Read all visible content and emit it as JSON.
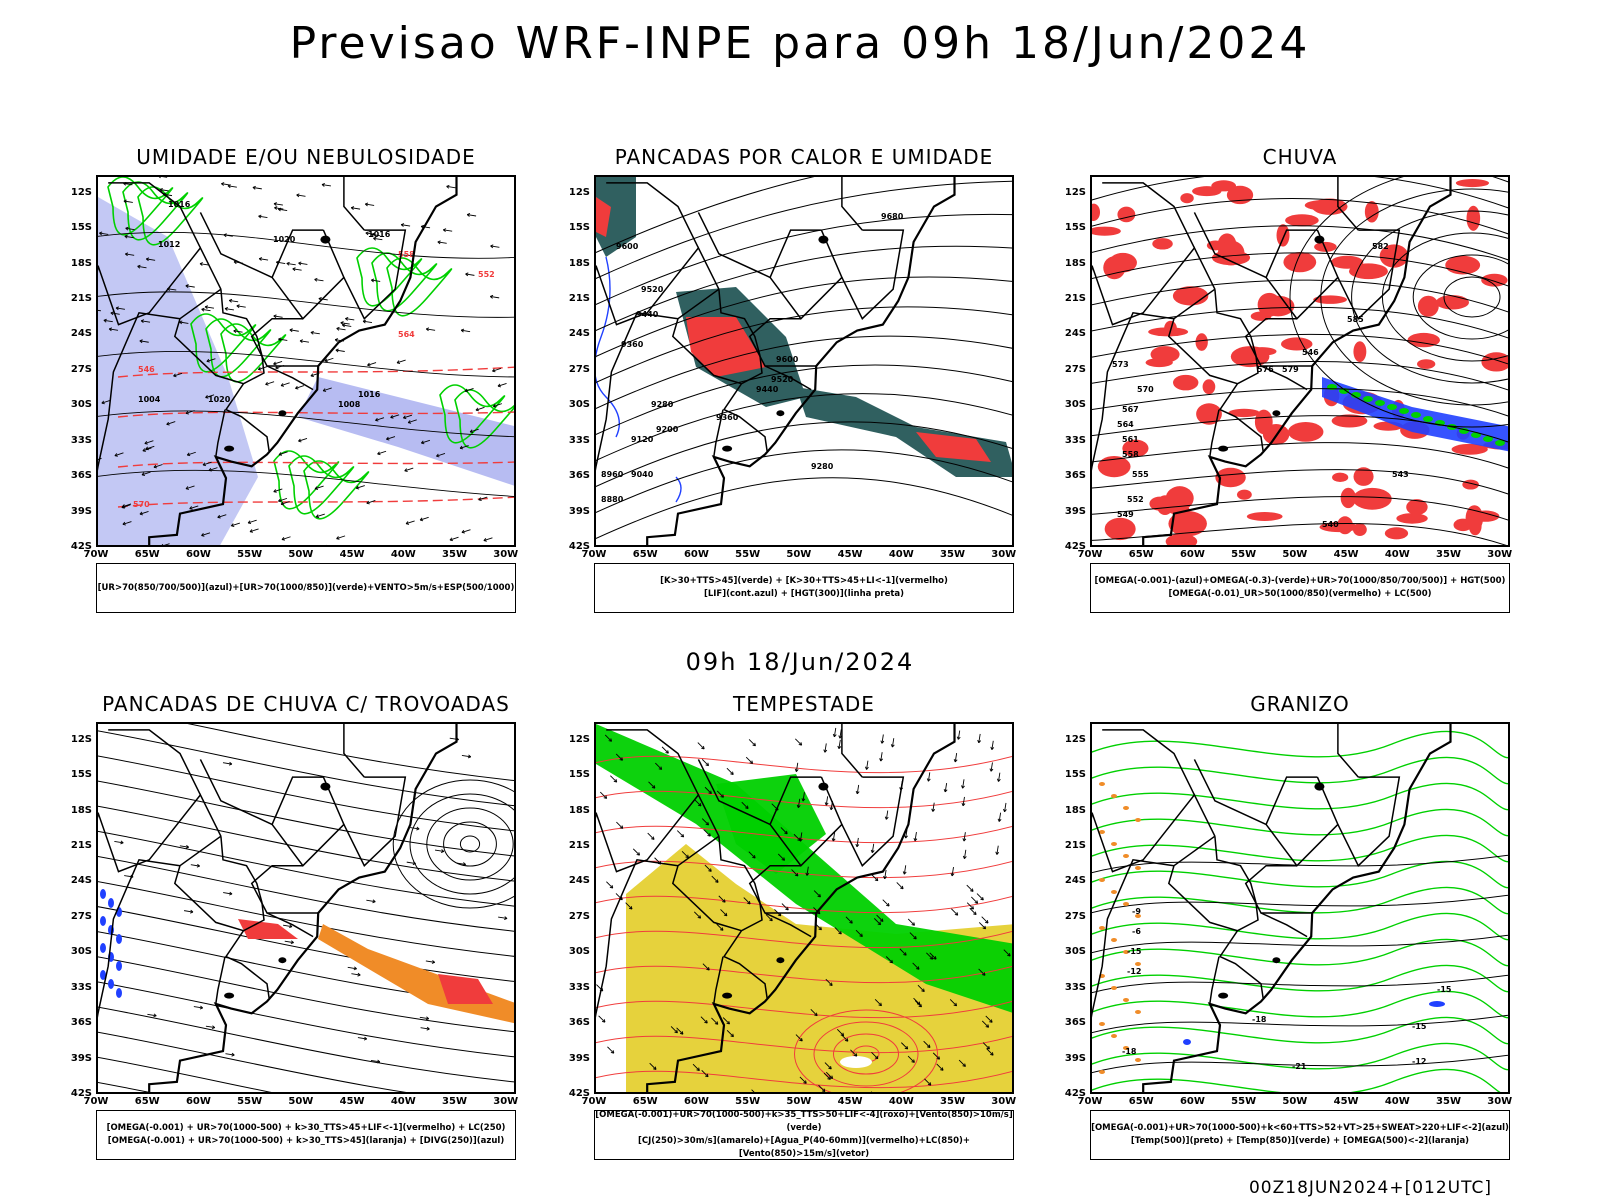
{
  "main_title": "Previsao WRF-INPE  para 09h 18/Jun/2024",
  "sub_title": "09h 18/Jun/2024",
  "footer": "00Z18JUN2024+[012UTC]",
  "lat_labels": [
    "12S",
    "15S",
    "18S",
    "21S",
    "24S",
    "27S",
    "30S",
    "33S",
    "36S",
    "39S",
    "42S"
  ],
  "lon_labels": [
    "70W",
    "65W",
    "60W",
    "55W",
    "50W",
    "45W",
    "40W",
    "35W",
    "30W"
  ],
  "colors": {
    "red": "#f03c3c",
    "green": "#00d000",
    "blue": "#2040ff",
    "lavender": "#aab0f0",
    "teal": "#306060",
    "yellow": "#e6d23c",
    "orange": "#f08c28"
  },
  "panels": [
    {
      "title": "UMIDADE E/OU NEBULOSIDADE",
      "legend": [
        "[UR>70(850/700/500)](azul)+[UR>70(1000/850)](verde)+VENTO>5m/s+ESP(500/1000)"
      ],
      "contour_labels": [
        "1016",
        "1012",
        "1020",
        "1016",
        "1020",
        "1008",
        "1004",
        "570",
        "564",
        "558",
        "552",
        "546",
        "1016"
      ]
    },
    {
      "title": "PANCADAS POR CALOR E UMIDADE",
      "legend": [
        "[K>30+TTS>45](verde) + [K>30+TTS>45+LI<-1](vermelho)",
        "[LIF](cont.azul) + [HGT(300)](linha preta)"
      ],
      "contour_labels": [
        "9680",
        "9600",
        "9520",
        "9440",
        "9360",
        "9280",
        "9200",
        "9120",
        "9040",
        "8960",
        "8880",
        "9600",
        "9520",
        "9440",
        "9360",
        "9280"
      ]
    },
    {
      "title": "CHUVA",
      "legend": [
        "[OMEGA(-0.001)-(azul)+OMEGA(-0.3)-(verde)+UR>70(1000/850/700/500)] + HGT(500)",
        "[OMEGA(-0.01)_UR>50(1000/850)(vermelho) + LC(500)"
      ],
      "contour_labels": [
        "582",
        "585",
        "579",
        "576",
        "573",
        "570",
        "567",
        "564",
        "561",
        "558",
        "555",
        "552",
        "549",
        "546",
        "543",
        "540"
      ]
    },
    {
      "title": "PANCADAS DE CHUVA C/ TROVOADAS",
      "legend": [
        "[OMEGA(-0.001) + UR>70(1000-500) + k>30_TTS>45+LIF<-1](vermelho) + LC(250)",
        "[OMEGA(-0.001) + UR>70(1000-500) + k>30_TTS>45](laranja) + [DIVG(250)](azul)"
      ],
      "contour_labels": []
    },
    {
      "title": "TEMPESTADE",
      "legend": [
        "[OMEGA(-0.001)+UR>70(1000-500)+k>35_TTS>50+LIF<-4](roxo)+[Vento(850)>10m/s](verde)",
        "[CJ(250)>30m/s](amarelo)+[Agua_P(40-60mm)](vermelho)+LC(850)+[Vento(850)>15m/s](vetor)"
      ],
      "contour_labels": []
    },
    {
      "title": "GRANIZO",
      "legend": [
        "[OMEGA(-0.001)+UR>70(1000-500)+k<60+TTS>52+VT>25+SWEAT>220+LIF<-2](azul)",
        "[Temp(500)](preto) + [Temp(850)](verde) + [OMEGA(500)<-2](laranja)"
      ],
      "contour_labels": [
        "-6",
        "-9",
        "-12",
        "-15",
        "-18",
        "-21",
        "-15",
        "-18",
        "-15",
        "-12"
      ]
    }
  ]
}
